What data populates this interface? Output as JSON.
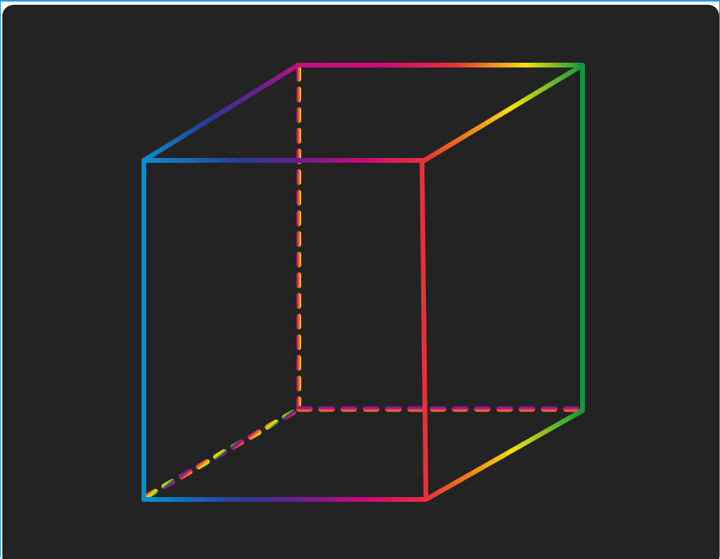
{
  "figure": {
    "subject": "cube-wireframe",
    "background_color": "#232323",
    "frame_color": "#2b9be0",
    "colors": {
      "blue": "#0a8fd0",
      "indigo": "#2b3a94",
      "purple": "#6a1e8e",
      "magenta": "#d4087a",
      "red": "#e8303a",
      "orange": "#f0781e",
      "yellow": "#f3e20a",
      "green": "#0e9a3e"
    },
    "edge_style": {
      "visible": "solid",
      "hidden": "dashed"
    }
  }
}
